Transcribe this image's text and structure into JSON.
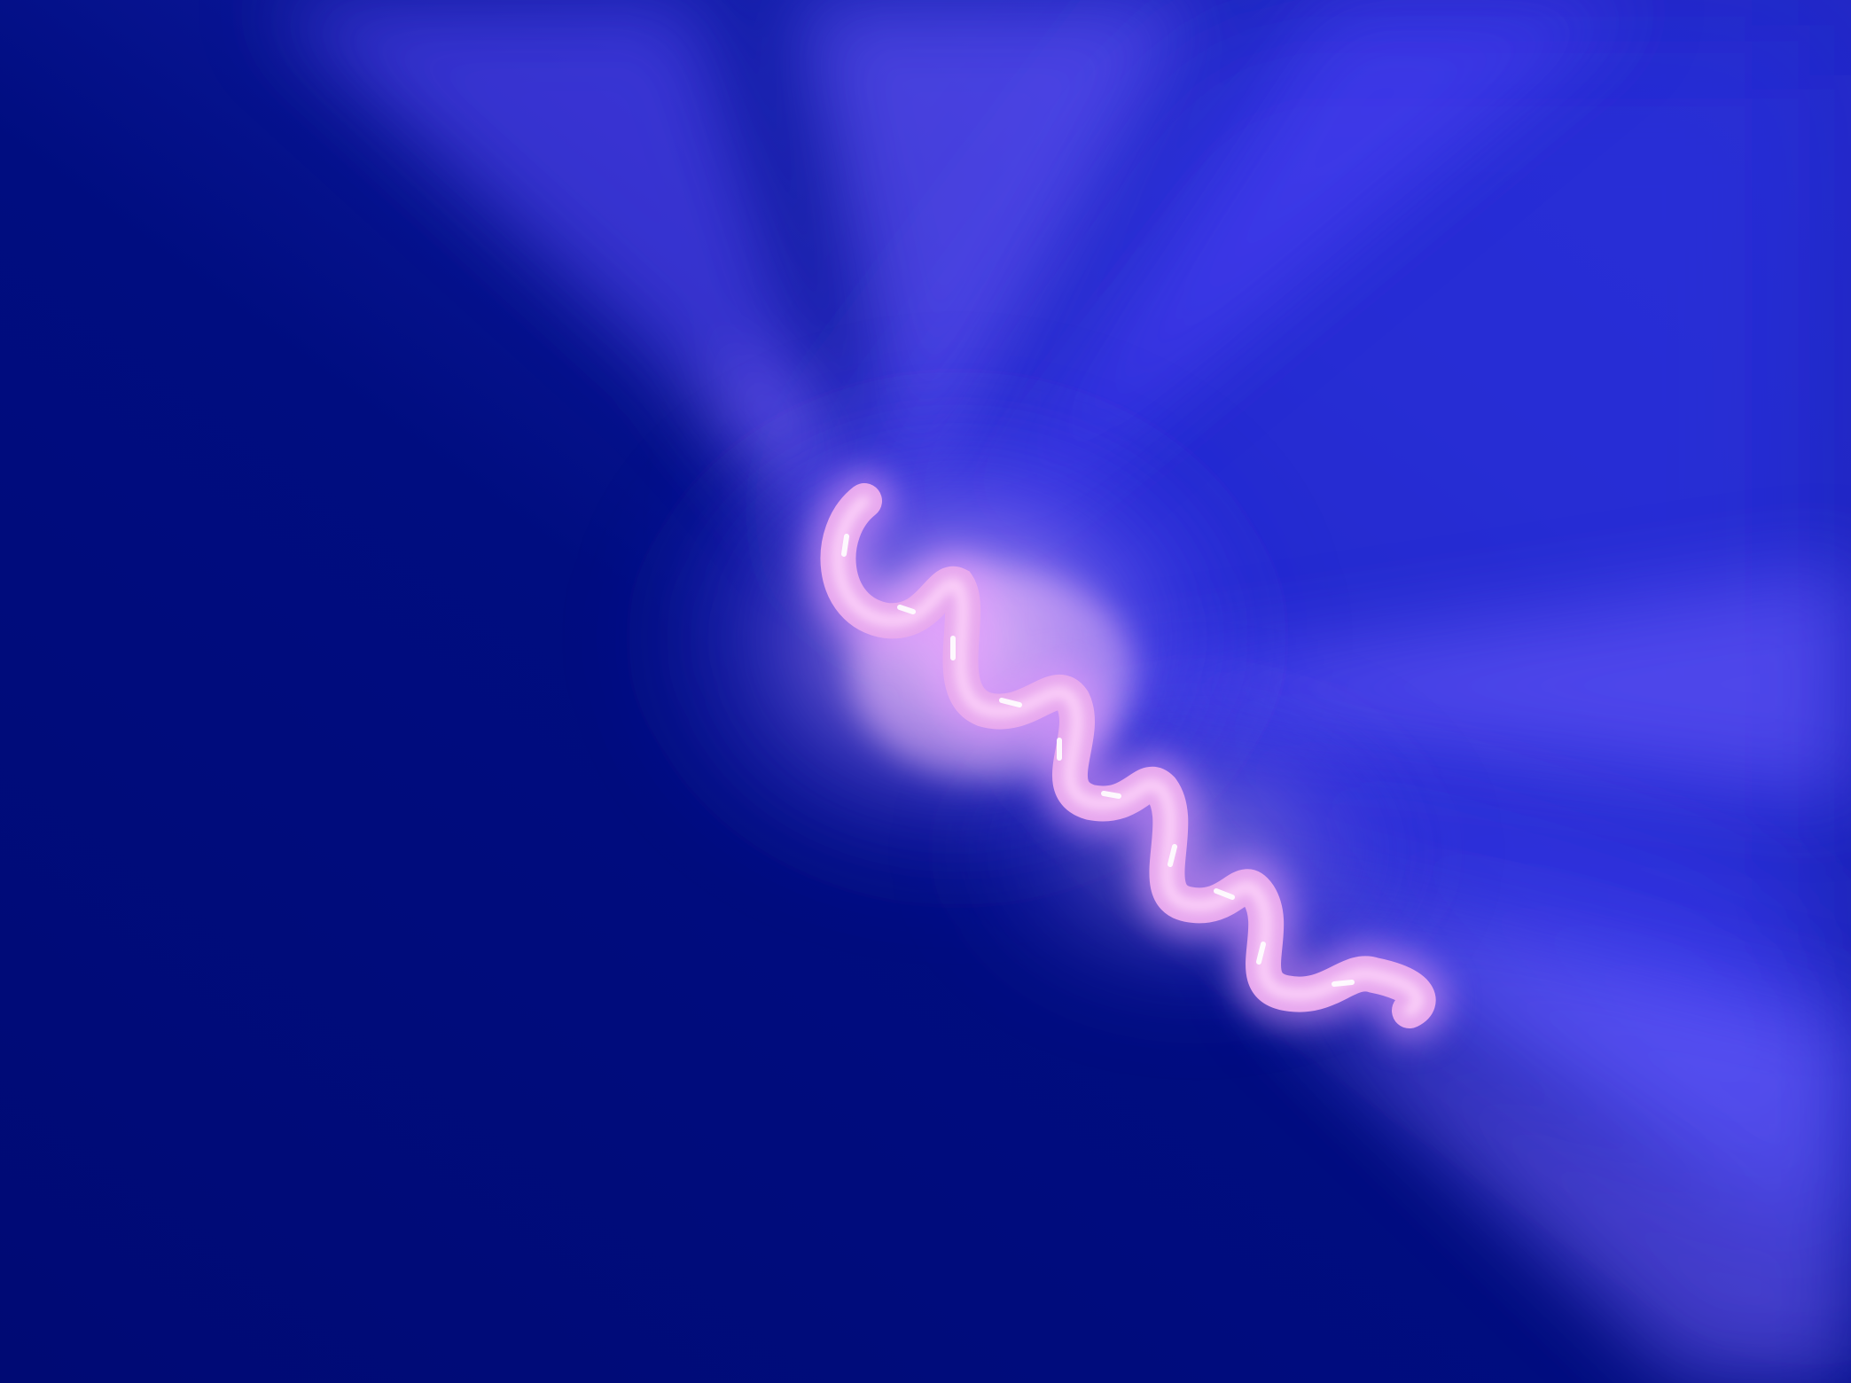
{
  "scene": {
    "subject": "glowing-helix-icon",
    "colors": {
      "background_dark": "#000c7a",
      "background_mid": "#1a1fb0",
      "glow_blue": "#3a3df0",
      "glow_violet": "#7a5cff",
      "helix_core": "#f2b8ef",
      "helix_highlight": "#fff2ff"
    }
  }
}
